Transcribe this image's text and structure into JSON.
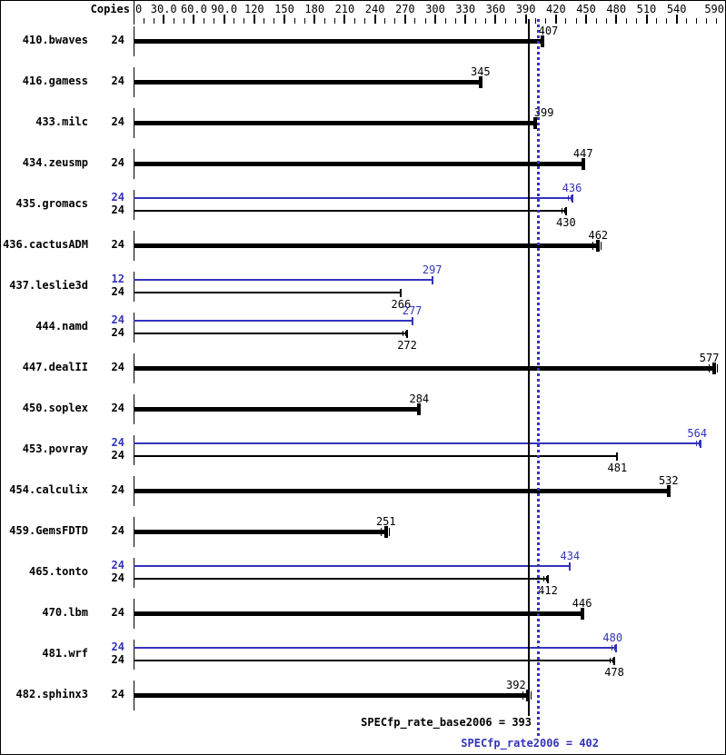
{
  "header": {
    "copies_label": "Copies"
  },
  "axis": {
    "min": 0,
    "max": 590,
    "minor_step": 10,
    "labels": [
      {
        "value": 0,
        "text": "0"
      },
      {
        "value": 30,
        "text": "30.0"
      },
      {
        "value": 60,
        "text": "60.0"
      },
      {
        "value": 90,
        "text": "90.0"
      },
      {
        "value": 120,
        "text": "120"
      },
      {
        "value": 150,
        "text": "150"
      },
      {
        "value": 180,
        "text": "180"
      },
      {
        "value": 210,
        "text": "210"
      },
      {
        "value": 240,
        "text": "240"
      },
      {
        "value": 270,
        "text": "270"
      },
      {
        "value": 300,
        "text": "300"
      },
      {
        "value": 330,
        "text": "330"
      },
      {
        "value": 360,
        "text": "360"
      },
      {
        "value": 390,
        "text": "390"
      },
      {
        "value": 420,
        "text": "420"
      },
      {
        "value": 450,
        "text": "450"
      },
      {
        "value": 480,
        "text": "480"
      },
      {
        "value": 510,
        "text": "510"
      },
      {
        "value": 540,
        "text": "540"
      },
      {
        "value": 590,
        "text": "590"
      }
    ]
  },
  "chart_data": {
    "type": "bar",
    "orientation": "horizontal",
    "xlim": [
      0,
      590
    ],
    "grid": false,
    "legend_position": "none",
    "benchmarks": [
      {
        "name": "410.bwaves",
        "bars": [
          {
            "kind": "base",
            "copies": "24",
            "value": 407,
            "runmarks": false,
            "label_dx": 6
          }
        ]
      },
      {
        "name": "416.gamess",
        "bars": [
          {
            "kind": "base",
            "copies": "24",
            "value": 345,
            "runmarks": false,
            "label_dx": 0
          }
        ]
      },
      {
        "name": "433.milc",
        "bars": [
          {
            "kind": "base",
            "copies": "24",
            "value": 399,
            "runmarks": false,
            "label_dx": 10
          }
        ]
      },
      {
        "name": "434.zeusmp",
        "bars": [
          {
            "kind": "base",
            "copies": "24",
            "value": 447,
            "runmarks": false,
            "label_dx": 0
          }
        ]
      },
      {
        "name": "435.gromacs",
        "bars": [
          {
            "kind": "peak",
            "copies": "24",
            "value": 436,
            "runmarks": true,
            "label_dx": 0
          },
          {
            "kind": "base",
            "copies": "24",
            "value": 430,
            "runmarks": true,
            "label_dx": 0
          }
        ]
      },
      {
        "name": "436.cactusADM",
        "bars": [
          {
            "kind": "base",
            "copies": "24",
            "value": 462,
            "runmarks": true,
            "label_dx": 0
          }
        ]
      },
      {
        "name": "437.leslie3d",
        "bars": [
          {
            "kind": "peak",
            "copies": "12",
            "value": 297,
            "runmarks": false,
            "label_dx": 0
          },
          {
            "kind": "base",
            "copies": "24",
            "value": 266,
            "runmarks": false,
            "label_dx": 0
          }
        ]
      },
      {
        "name": "444.namd",
        "bars": [
          {
            "kind": "peak",
            "copies": "24",
            "value": 277,
            "runmarks": false,
            "label_dx": 0
          },
          {
            "kind": "base",
            "copies": "24",
            "value": 272,
            "runmarks": true,
            "label_dx": 0
          }
        ]
      },
      {
        "name": "447.dealII",
        "bars": [
          {
            "kind": "base",
            "copies": "24",
            "value": 577,
            "runmarks": true,
            "label_dx": -5
          }
        ]
      },
      {
        "name": "450.soplex",
        "bars": [
          {
            "kind": "base",
            "copies": "24",
            "value": 284,
            "runmarks": false,
            "label_dx": 0
          }
        ]
      },
      {
        "name": "453.povray",
        "bars": [
          {
            "kind": "peak",
            "copies": "24",
            "value": 564,
            "runmarks": true,
            "label_dx": -4
          },
          {
            "kind": "base",
            "copies": "24",
            "value": 481,
            "runmarks": false,
            "label_dx": 0
          }
        ]
      },
      {
        "name": "454.calculix",
        "bars": [
          {
            "kind": "base",
            "copies": "24",
            "value": 532,
            "runmarks": false,
            "label_dx": 0
          }
        ]
      },
      {
        "name": "459.GemsFDTD",
        "bars": [
          {
            "kind": "base",
            "copies": "24",
            "value": 251,
            "runmarks": true,
            "label_dx": 0
          }
        ]
      },
      {
        "name": "465.tonto",
        "bars": [
          {
            "kind": "peak",
            "copies": "24",
            "value": 434,
            "runmarks": false,
            "label_dx": 0
          },
          {
            "kind": "base",
            "copies": "24",
            "value": 412,
            "runmarks": true,
            "label_dx": 0
          }
        ]
      },
      {
        "name": "470.lbm",
        "bars": [
          {
            "kind": "base",
            "copies": "24",
            "value": 446,
            "runmarks": false,
            "label_dx": 0
          }
        ]
      },
      {
        "name": "481.wrf",
        "bars": [
          {
            "kind": "peak",
            "copies": "24",
            "value": 480,
            "runmarks": true,
            "label_dx": -4
          },
          {
            "kind": "base",
            "copies": "24",
            "value": 478,
            "runmarks": true,
            "label_dx": 0
          }
        ]
      },
      {
        "name": "482.sphinx3",
        "bars": [
          {
            "kind": "base",
            "copies": "24",
            "value": 392,
            "runmarks": true,
            "label_dx": -13
          }
        ]
      }
    ],
    "reference_lines": [
      {
        "name": "base_median",
        "value": 393,
        "style": "solid",
        "color": "#000000"
      },
      {
        "name": "peak_median",
        "value": 402,
        "style": "dotted",
        "color": "#3333bb"
      }
    ]
  },
  "footer": {
    "base_label": "SPECfp_rate_base2006 = 393",
    "peak_label": "SPECfp_rate2006 = 402"
  },
  "colors": {
    "base": "#000000",
    "peak": "#3333bb"
  }
}
